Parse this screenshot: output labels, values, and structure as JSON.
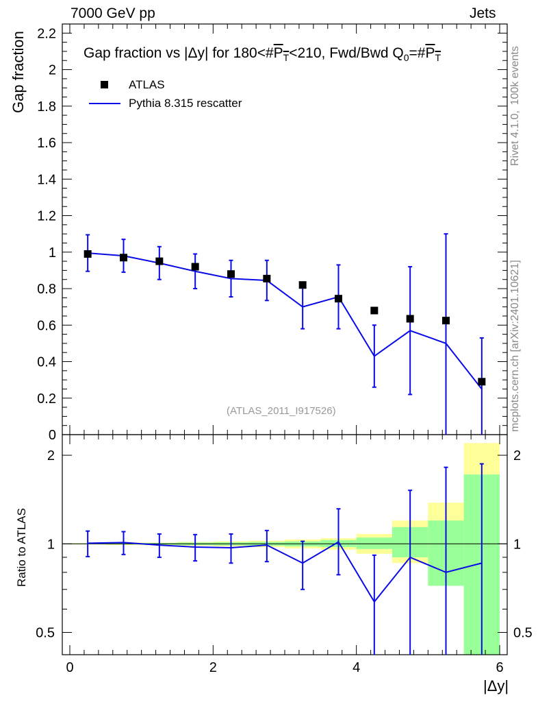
{
  "header": {
    "energy_label": "7000 GeV pp",
    "category_label": "Jets"
  },
  "side_labels": {
    "rivet": "Rivet 4.1.0,  100k events",
    "mcplots": "mcplots.cern.ch [arXiv:2401.10621]"
  },
  "reference_label": "(ATLAS_2011_I917526)",
  "title_parts": {
    "prefix": "Gap fraction vs |Δy| for 180<#",
    "p": "P",
    "t": "T",
    "middle": "<210, Fwd/Bwd Q",
    "zero": "0",
    "suffix": "=#"
  },
  "colors": {
    "data": "#000000",
    "mc": "#0a0ae6",
    "band_yellow": "#ffff99",
    "band_green": "#99ff99"
  },
  "chart_data": [
    {
      "type": "scatter",
      "panel": "main",
      "ylabel": "Gap fraction",
      "xlabel": "|Δy|",
      "xlim": [
        0,
        6
      ],
      "ylim": [
        0,
        2.25
      ],
      "yticks": [
        "0",
        "0.2",
        "0.4",
        "0.6",
        "0.8",
        "1",
        "1.2",
        "1.4",
        "1.6",
        "1.8",
        "2",
        "2.2"
      ],
      "legend": {
        "position": "top-left",
        "entries": [
          "ATLAS",
          "Pythia 8.315 rescatter"
        ]
      },
      "x": [
        0.25,
        0.75,
        1.25,
        1.75,
        2.25,
        2.75,
        3.25,
        3.75,
        4.25,
        4.75,
        5.25,
        5.75
      ],
      "series": [
        {
          "name": "ATLAS",
          "style": "marker",
          "values": [
            0.99,
            0.97,
            0.95,
            0.92,
            0.88,
            0.855,
            0.82,
            0.745,
            0.68,
            0.635,
            0.625,
            0.29
          ]
        },
        {
          "name": "Pythia 8.315 rescatter",
          "style": "line",
          "values": [
            0.995,
            0.98,
            0.94,
            0.895,
            0.855,
            0.845,
            0.7,
            0.755,
            0.43,
            0.57,
            0.5,
            0.25
          ],
          "err_low": [
            0.1,
            0.09,
            0.09,
            0.095,
            0.1,
            0.11,
            0.12,
            0.175,
            0.17,
            0.35,
            0.6,
            0.25
          ],
          "err_high": [
            0.1,
            0.09,
            0.09,
            0.095,
            0.1,
            0.11,
            0.12,
            0.175,
            0.17,
            0.35,
            0.6,
            0.28
          ]
        }
      ]
    },
    {
      "type": "line",
      "panel": "ratio",
      "ylabel": "Ratio to ATLAS",
      "xlabel": "|Δy|",
      "xlim": [
        0,
        6
      ],
      "ylim": [
        0.42,
        2.35
      ],
      "yscale": "log",
      "yticks": [
        "0.5",
        "1",
        "2"
      ],
      "xticks": [
        "0",
        "2",
        "4",
        "6"
      ],
      "x_edges": [
        0,
        0.5,
        1.0,
        1.5,
        2.0,
        2.5,
        3.0,
        3.5,
        4.0,
        4.5,
        5.0,
        5.5,
        6.0
      ],
      "band_yellow": {
        "low": [
          0.995,
          0.99,
          0.99,
          0.985,
          0.98,
          0.975,
          0.965,
          0.955,
          0.925,
          0.86,
          0.72,
          0.42
        ],
        "high": [
          1.005,
          1.01,
          1.01,
          1.015,
          1.02,
          1.025,
          1.035,
          1.045,
          1.08,
          1.2,
          1.38,
          2.2
        ]
      },
      "band_green": {
        "low": [
          0.997,
          0.995,
          0.993,
          0.99,
          0.988,
          0.985,
          0.98,
          0.975,
          0.96,
          0.9,
          0.72,
          0.42
        ],
        "high": [
          1.003,
          1.005,
          1.007,
          1.01,
          1.012,
          1.015,
          1.02,
          1.03,
          1.05,
          1.14,
          1.2,
          1.72
        ]
      },
      "x": [
        0.25,
        0.75,
        1.25,
        1.75,
        2.25,
        2.75,
        3.25,
        3.75,
        4.25,
        4.75,
        5.25,
        5.75
      ],
      "series": [
        {
          "name": "Pythia 8.315 rescatter / ATLAS",
          "values": [
            1.005,
            1.01,
            0.99,
            0.975,
            0.97,
            0.99,
            0.86,
            1.015,
            0.635,
            0.9,
            0.8,
            0.86
          ],
          "err_low": [
            0.1,
            0.09,
            0.09,
            0.1,
            0.11,
            0.12,
            0.16,
            0.23,
            0.3,
            0.6,
            0.8,
            0.86
          ],
          "err_high": [
            0.1,
            0.09,
            0.09,
            0.1,
            0.11,
            0.12,
            0.16,
            0.3,
            0.28,
            0.62,
            1.02,
            1.01
          ]
        }
      ]
    }
  ]
}
